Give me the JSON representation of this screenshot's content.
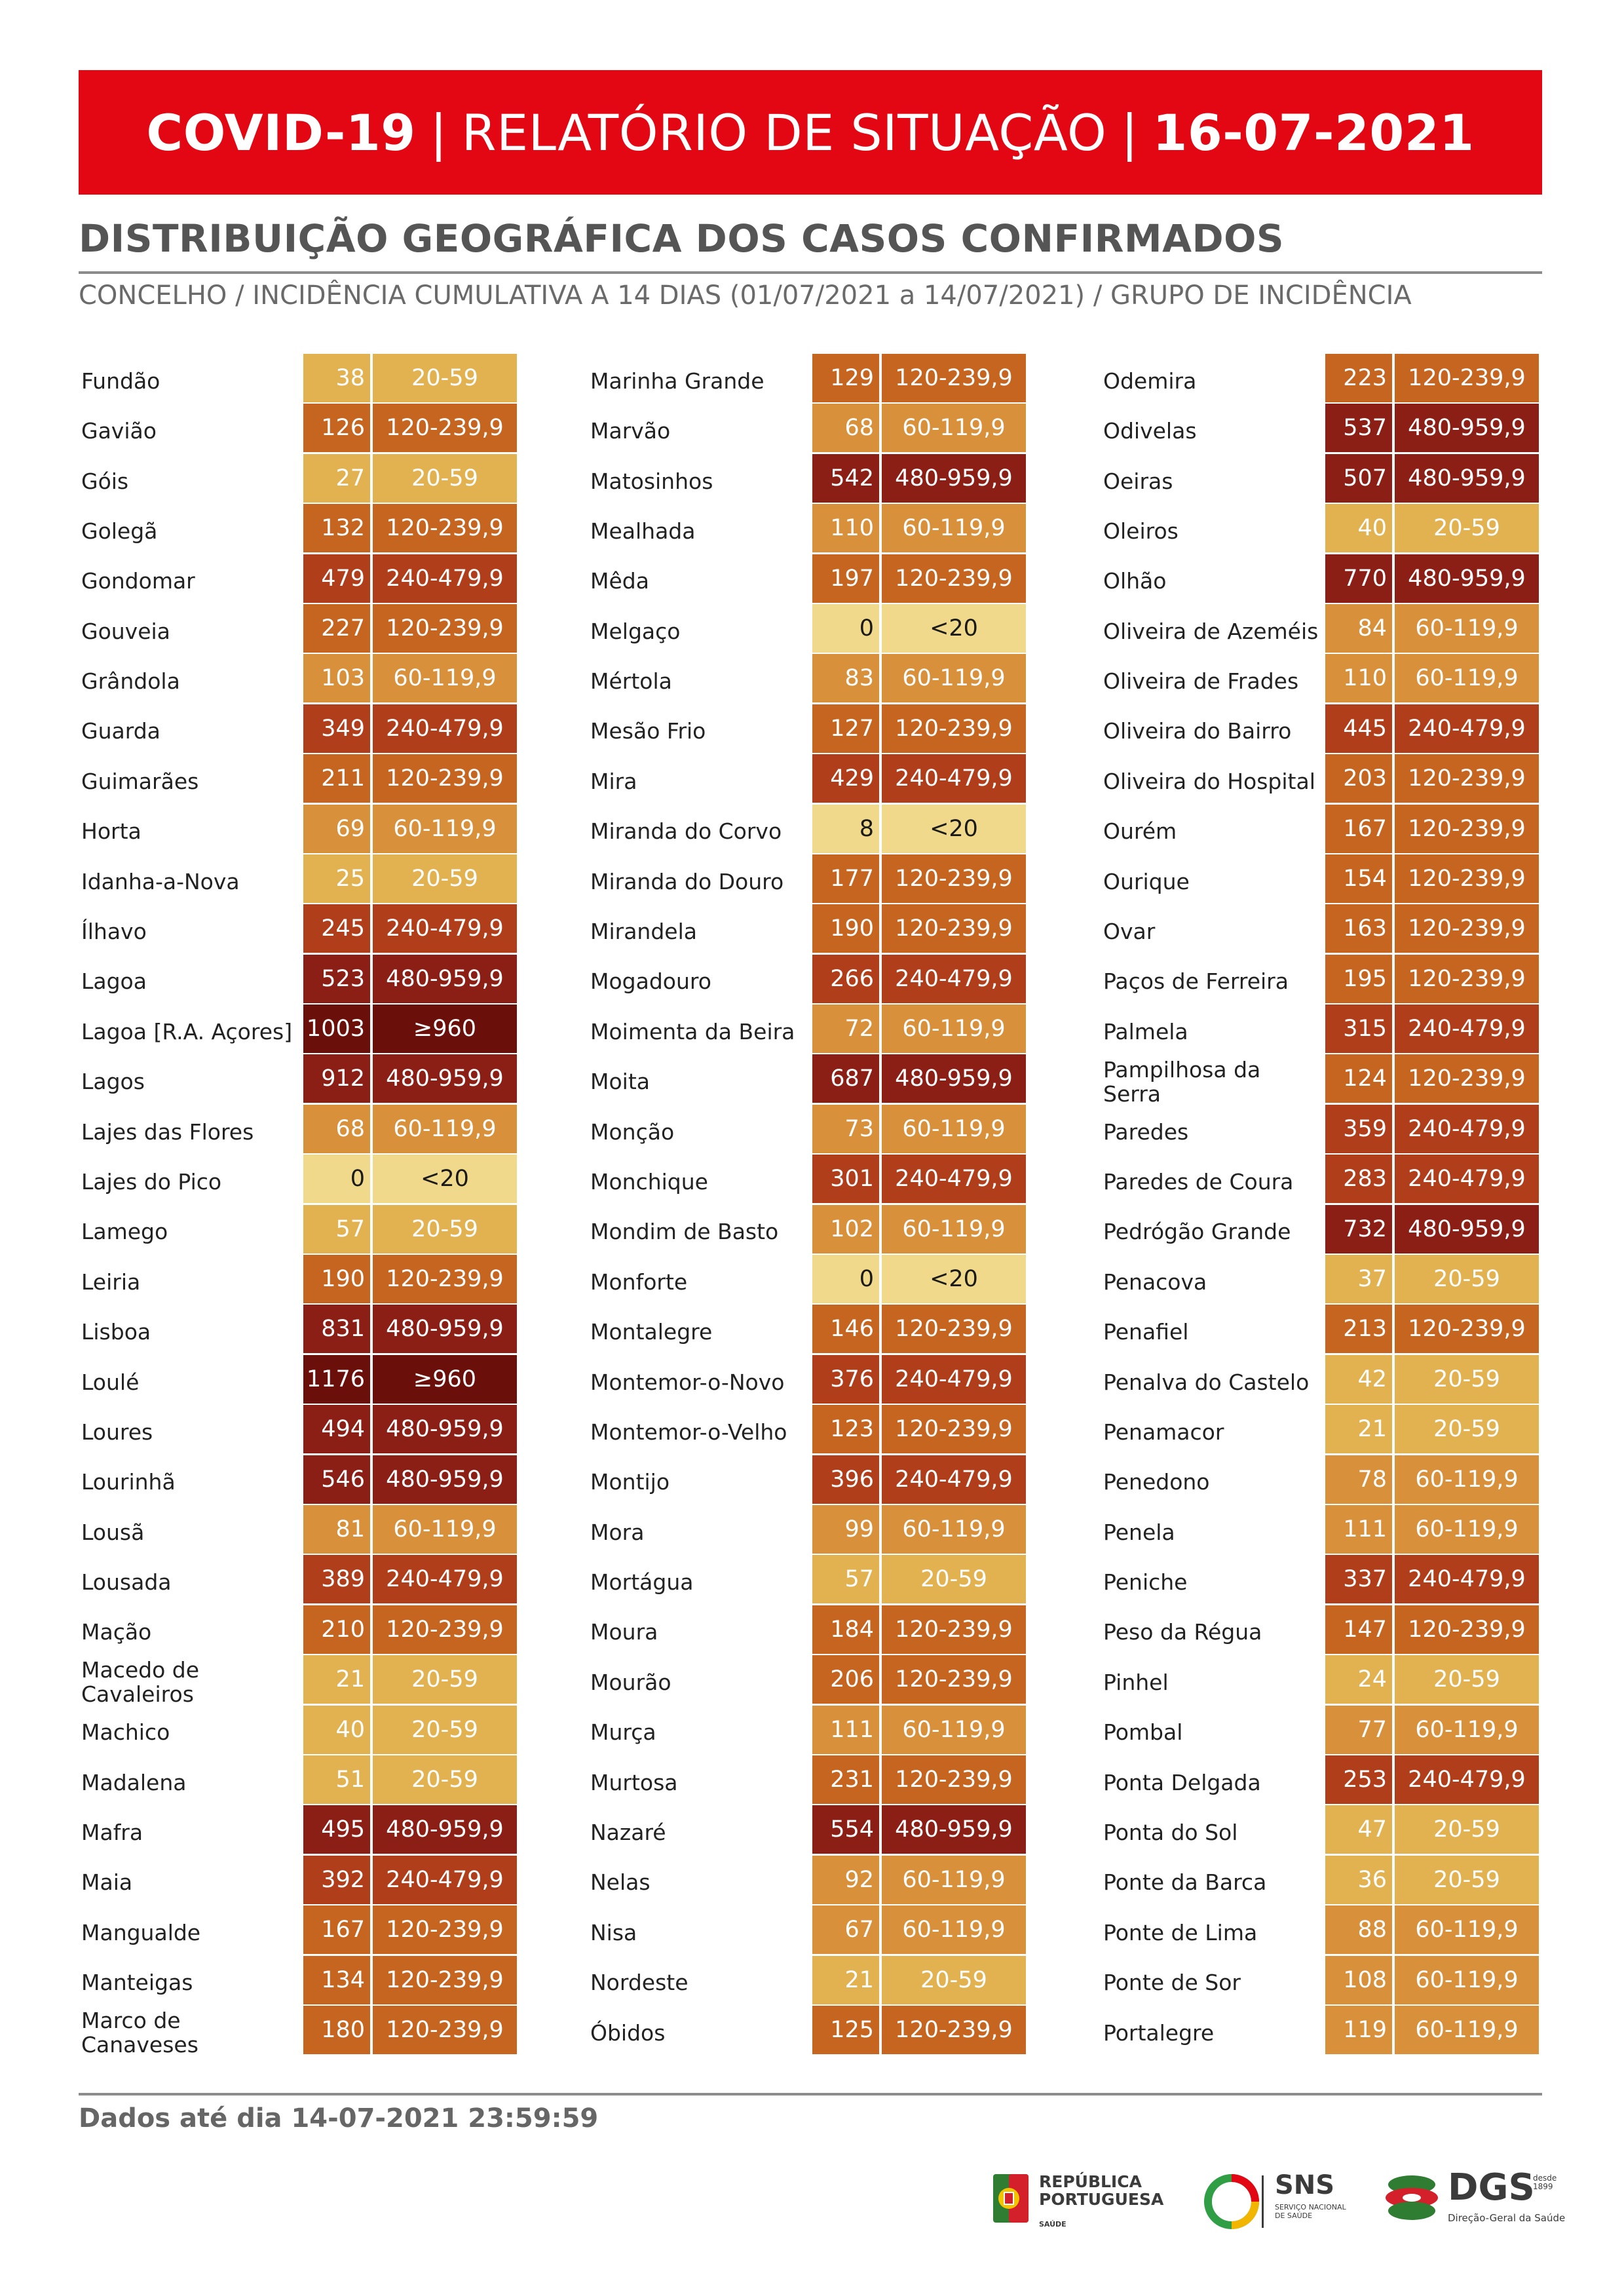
{
  "header": {
    "part1": "COVID-19",
    "sep1": "|",
    "part2": "RELATÓRIO DE SITUAÇÃO",
    "sep2": "|",
    "part3": "16-07-2021"
  },
  "section_title": "DISTRIBUIÇÃO GEOGRÁFICA DOS CASOS CONFIRMADOS",
  "section_subtitle": "CONCELHO / INCIDÊNCIA CUMULATIVA A 14 DIAS (01/07/2021 a 14/07/2021) / GRUPO DE INCIDÊNCIA",
  "colors": {
    "banner": "#e30613",
    "<20": "#f0d98a",
    "20-59": "#e3b250",
    "60-119,9": "#d8913a",
    "120-239,9": "#c5651f",
    "240-479,9": "#b03e1b",
    "480-959,9": "#8b1f16",
    "≥960": "#6a0f0a"
  },
  "columns": [
    [
      {
        "name": "Fundão",
        "value": "38",
        "group": "20-59"
      },
      {
        "name": "Gavião",
        "value": "126",
        "group": "120-239,9"
      },
      {
        "name": "Góis",
        "value": "27",
        "group": "20-59"
      },
      {
        "name": "Golegã",
        "value": "132",
        "group": "120-239,9"
      },
      {
        "name": "Gondomar",
        "value": "479",
        "group": "240-479,9"
      },
      {
        "name": "Gouveia",
        "value": "227",
        "group": "120-239,9"
      },
      {
        "name": "Grândola",
        "value": "103",
        "group": "60-119,9"
      },
      {
        "name": "Guarda",
        "value": "349",
        "group": "240-479,9"
      },
      {
        "name": "Guimarães",
        "value": "211",
        "group": "120-239,9"
      },
      {
        "name": "Horta",
        "value": "69",
        "group": "60-119,9"
      },
      {
        "name": "Idanha-a-Nova",
        "value": "25",
        "group": "20-59"
      },
      {
        "name": "Ílhavo",
        "value": "245",
        "group": "240-479,9"
      },
      {
        "name": "Lagoa",
        "value": "523",
        "group": "480-959,9"
      },
      {
        "name": "Lagoa [R.A. Açores]",
        "value": "1003",
        "group": "≥960"
      },
      {
        "name": "Lagos",
        "value": "912",
        "group": "480-959,9"
      },
      {
        "name": "Lajes das Flores",
        "value": "68",
        "group": "60-119,9"
      },
      {
        "name": "Lajes do Pico",
        "value": "0",
        "group": "<20"
      },
      {
        "name": "Lamego",
        "value": "57",
        "group": "20-59"
      },
      {
        "name": "Leiria",
        "value": "190",
        "group": "120-239,9"
      },
      {
        "name": "Lisboa",
        "value": "831",
        "group": "480-959,9"
      },
      {
        "name": "Loulé",
        "value": "1176",
        "group": "≥960"
      },
      {
        "name": "Loures",
        "value": "494",
        "group": "480-959,9"
      },
      {
        "name": "Lourinhã",
        "value": "546",
        "group": "480-959,9"
      },
      {
        "name": "Lousã",
        "value": "81",
        "group": "60-119,9"
      },
      {
        "name": "Lousada",
        "value": "389",
        "group": "240-479,9"
      },
      {
        "name": "Mação",
        "value": "210",
        "group": "120-239,9"
      },
      {
        "name": "Macedo de Cavaleiros",
        "value": "21",
        "group": "20-59"
      },
      {
        "name": "Machico",
        "value": "40",
        "group": "20-59"
      },
      {
        "name": "Madalena",
        "value": "51",
        "group": "20-59"
      },
      {
        "name": "Mafra",
        "value": "495",
        "group": "480-959,9"
      },
      {
        "name": "Maia",
        "value": "392",
        "group": "240-479,9"
      },
      {
        "name": "Mangualde",
        "value": "167",
        "group": "120-239,9"
      },
      {
        "name": "Manteigas",
        "value": "134",
        "group": "120-239,9"
      },
      {
        "name": "Marco de Canaveses",
        "value": "180",
        "group": "120-239,9"
      }
    ],
    [
      {
        "name": "Marinha Grande",
        "value": "129",
        "group": "120-239,9"
      },
      {
        "name": "Marvão",
        "value": "68",
        "group": "60-119,9"
      },
      {
        "name": "Matosinhos",
        "value": "542",
        "group": "480-959,9"
      },
      {
        "name": "Mealhada",
        "value": "110",
        "group": "60-119,9"
      },
      {
        "name": "Mêda",
        "value": "197",
        "group": "120-239,9"
      },
      {
        "name": "Melgaço",
        "value": "0",
        "group": "<20"
      },
      {
        "name": "Mértola",
        "value": "83",
        "group": "60-119,9"
      },
      {
        "name": "Mesão Frio",
        "value": "127",
        "group": "120-239,9"
      },
      {
        "name": "Mira",
        "value": "429",
        "group": "240-479,9"
      },
      {
        "name": "Miranda do Corvo",
        "value": "8",
        "group": "<20"
      },
      {
        "name": "Miranda do Douro",
        "value": "177",
        "group": "120-239,9"
      },
      {
        "name": "Mirandela",
        "value": "190",
        "group": "120-239,9"
      },
      {
        "name": "Mogadouro",
        "value": "266",
        "group": "240-479,9"
      },
      {
        "name": "Moimenta da Beira",
        "value": "72",
        "group": "60-119,9"
      },
      {
        "name": "Moita",
        "value": "687",
        "group": "480-959,9"
      },
      {
        "name": "Monção",
        "value": "73",
        "group": "60-119,9"
      },
      {
        "name": "Monchique",
        "value": "301",
        "group": "240-479,9"
      },
      {
        "name": "Mondim de Basto",
        "value": "102",
        "group": "60-119,9"
      },
      {
        "name": "Monforte",
        "value": "0",
        "group": "<20"
      },
      {
        "name": "Montalegre",
        "value": "146",
        "group": "120-239,9"
      },
      {
        "name": "Montemor-o-Novo",
        "value": "376",
        "group": "240-479,9"
      },
      {
        "name": "Montemor-o-Velho",
        "value": "123",
        "group": "120-239,9"
      },
      {
        "name": "Montijo",
        "value": "396",
        "group": "240-479,9"
      },
      {
        "name": "Mora",
        "value": "99",
        "group": "60-119,9"
      },
      {
        "name": "Mortágua",
        "value": "57",
        "group": "20-59"
      },
      {
        "name": "Moura",
        "value": "184",
        "group": "120-239,9"
      },
      {
        "name": "Mourão",
        "value": "206",
        "group": "120-239,9"
      },
      {
        "name": "Murça",
        "value": "111",
        "group": "60-119,9"
      },
      {
        "name": "Murtosa",
        "value": "231",
        "group": "120-239,9"
      },
      {
        "name": "Nazaré",
        "value": "554",
        "group": "480-959,9"
      },
      {
        "name": "Nelas",
        "value": "92",
        "group": "60-119,9"
      },
      {
        "name": "Nisa",
        "value": "67",
        "group": "60-119,9"
      },
      {
        "name": "Nordeste",
        "value": "21",
        "group": "20-59"
      },
      {
        "name": "Óbidos",
        "value": "125",
        "group": "120-239,9"
      }
    ],
    [
      {
        "name": "Odemira",
        "value": "223",
        "group": "120-239,9"
      },
      {
        "name": "Odivelas",
        "value": "537",
        "group": "480-959,9"
      },
      {
        "name": "Oeiras",
        "value": "507",
        "group": "480-959,9"
      },
      {
        "name": "Oleiros",
        "value": "40",
        "group": "20-59"
      },
      {
        "name": "Olhão",
        "value": "770",
        "group": "480-959,9"
      },
      {
        "name": "Oliveira de Azeméis",
        "value": "84",
        "group": "60-119,9"
      },
      {
        "name": "Oliveira de Frades",
        "value": "110",
        "group": "60-119,9"
      },
      {
        "name": "Oliveira do Bairro",
        "value": "445",
        "group": "240-479,9"
      },
      {
        "name": "Oliveira do Hospital",
        "value": "203",
        "group": "120-239,9"
      },
      {
        "name": "Ourém",
        "value": "167",
        "group": "120-239,9"
      },
      {
        "name": "Ourique",
        "value": "154",
        "group": "120-239,9"
      },
      {
        "name": "Ovar",
        "value": "163",
        "group": "120-239,9"
      },
      {
        "name": "Paços de Ferreira",
        "value": "195",
        "group": "120-239,9"
      },
      {
        "name": "Palmela",
        "value": "315",
        "group": "240-479,9"
      },
      {
        "name": "Pampilhosa da Serra",
        "value": "124",
        "group": "120-239,9"
      },
      {
        "name": "Paredes",
        "value": "359",
        "group": "240-479,9"
      },
      {
        "name": "Paredes de Coura",
        "value": "283",
        "group": "240-479,9"
      },
      {
        "name": "Pedrógão Grande",
        "value": "732",
        "group": "480-959,9"
      },
      {
        "name": "Penacova",
        "value": "37",
        "group": "20-59"
      },
      {
        "name": "Penafiel",
        "value": "213",
        "group": "120-239,9"
      },
      {
        "name": "Penalva do Castelo",
        "value": "42",
        "group": "20-59"
      },
      {
        "name": "Penamacor",
        "value": "21",
        "group": "20-59"
      },
      {
        "name": "Penedono",
        "value": "78",
        "group": "60-119,9"
      },
      {
        "name": "Penela",
        "value": "111",
        "group": "60-119,9"
      },
      {
        "name": "Peniche",
        "value": "337",
        "group": "240-479,9"
      },
      {
        "name": "Peso da Régua",
        "value": "147",
        "group": "120-239,9"
      },
      {
        "name": "Pinhel",
        "value": "24",
        "group": "20-59"
      },
      {
        "name": "Pombal",
        "value": "77",
        "group": "60-119,9"
      },
      {
        "name": "Ponta Delgada",
        "value": "253",
        "group": "240-479,9"
      },
      {
        "name": "Ponta do Sol",
        "value": "47",
        "group": "20-59"
      },
      {
        "name": "Ponte da Barca",
        "value": "36",
        "group": "20-59"
      },
      {
        "name": "Ponte de Lima",
        "value": "88",
        "group": "60-119,9"
      },
      {
        "name": "Ponte de Sor",
        "value": "108",
        "group": "60-119,9"
      },
      {
        "name": "Portalegre",
        "value": "119",
        "group": "60-119,9"
      }
    ]
  ],
  "footer": {
    "text": "Dados até dia 14-07-2021 23:59:59"
  },
  "logos": {
    "republica": {
      "line1": "REPÚBLICA",
      "line2": "PORTUGUESA",
      "sub": "SAÚDE",
      "icon": "republica-shield-icon"
    },
    "sns": {
      "text": "SNS",
      "sub": "SERVIÇO NACIONAL DE SAÚDE",
      "icon": "sns-ring-icon"
    },
    "dgs": {
      "text": "DGS",
      "since": "desde 1899",
      "sub": "Direção-Geral da Saúde",
      "icon": "dgs-stack-icon"
    }
  }
}
